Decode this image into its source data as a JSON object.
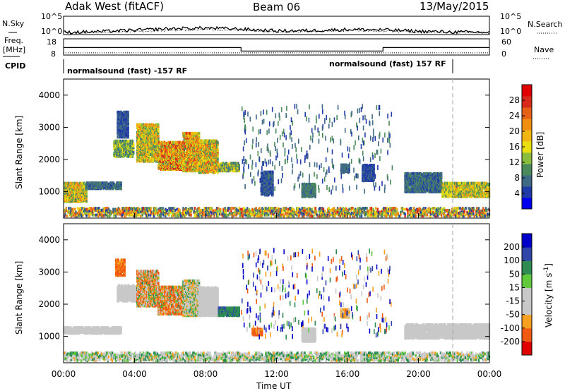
{
  "header": {
    "station": "Adak West (fitACF)",
    "beam": "Beam 06",
    "date": "13/May/2015"
  },
  "top_labels": {
    "nsky": "N.Sky",
    "nsearch": "N.Search",
    "freq_line1": "Freq.",
    "freq_line2": "[MHz]",
    "nave": "Nave",
    "cpid": "CPID"
  },
  "cpid_labels": [
    "normalsound (fast) -157 RF",
    "normalsound (fast) 157 RF"
  ],
  "colors": {
    "power": [
      "#0000ee",
      "#203aa8",
      "#3f6a86",
      "#4b8a5a",
      "#8abd3c",
      "#e9df10",
      "#f3b512",
      "#f08e12",
      "#e6601a",
      "#d82a1a",
      "#e00000"
    ],
    "velocity": [
      "#e00000",
      "#f15a12",
      "#f7a020",
      "#c8c8c8",
      "#c8c8c8",
      "#62c83c",
      "#2e8c52",
      "#2f46a8",
      "#0000c8"
    ],
    "ground_scatter": "#c8c8c8"
  },
  "chart_data": [
    {
      "type": "line",
      "name": "N.Sky / N.Search noise",
      "ylabels": [
        "10^5",
        "10^0"
      ],
      "right_ylabels": [
        "10^5",
        "10^0"
      ],
      "ylim_log10": [
        0,
        5
      ],
      "x": [
        0,
        2,
        4,
        6,
        8,
        10,
        12,
        14,
        16,
        18,
        20,
        22,
        24
      ],
      "series": [
        {
          "name": "N.Sky",
          "values": [
            0.6,
            0.8,
            1.2,
            1.6,
            1.8,
            1.5,
            1.0,
            1.1,
            1.4,
            1.3,
            0.9,
            0.7,
            0.6
          ]
        },
        {
          "name": "N.Search",
          "values": [
            0.5,
            0.6,
            0.9,
            1.1,
            1.4,
            1.2,
            0.8,
            0.9,
            1.1,
            1.0,
            0.7,
            0.6,
            0.5
          ]
        }
      ]
    },
    {
      "type": "line",
      "name": "Freq / Nave",
      "left_ticks": [
        8,
        18
      ],
      "right_ticks": [
        0,
        60
      ],
      "left_ylim": [
        8,
        18
      ],
      "right_ylim": [
        0,
        60
      ],
      "freq_steps": [
        {
          "from": 0,
          "to": 10,
          "value": 12.6
        },
        {
          "from": 10,
          "to": 18,
          "value": 10.5
        },
        {
          "from": 18,
          "to": 24,
          "value": 12.6
        }
      ],
      "nave_value": 8
    },
    {
      "type": "heatmap",
      "name": "power",
      "xlabel": "",
      "ylabel": "Slant Range [km]",
      "ylim": [
        180,
        4500
      ],
      "xlim": [
        0,
        24
      ],
      "yticks": [
        1000,
        2000,
        3000,
        4000
      ],
      "colorbar_label": "Power [dB]",
      "colorbar_ticks": [
        4,
        8,
        12,
        16,
        20,
        24,
        28
      ],
      "colorbar_range": [
        0,
        30
      ],
      "regions": [
        {
          "t0": 0.0,
          "t1": 1.3,
          "r0": 650,
          "r1": 1250,
          "v0": 8,
          "v1": 22
        },
        {
          "t0": 1.2,
          "t1": 3.2,
          "r0": 1050,
          "r1": 1250,
          "v0": 5,
          "v1": 9
        },
        {
          "t0": 2.8,
          "t1": 3.9,
          "r0": 2050,
          "r1": 2550,
          "v0": 6,
          "v1": 16
        },
        {
          "t0": 3.0,
          "t1": 3.6,
          "r0": 2650,
          "r1": 3450,
          "v0": 3,
          "v1": 7
        },
        {
          "t0": 4.1,
          "t1": 5.3,
          "r0": 1900,
          "r1": 3050,
          "v0": 8,
          "v1": 22
        },
        {
          "t0": 5.3,
          "t1": 6.7,
          "r0": 1650,
          "r1": 2500,
          "v0": 10,
          "v1": 28
        },
        {
          "t0": 6.7,
          "t1": 7.6,
          "r0": 1600,
          "r1": 2800,
          "v0": 10,
          "v1": 26
        },
        {
          "t0": 7.6,
          "t1": 8.7,
          "r0": 1550,
          "r1": 2550,
          "v0": 8,
          "v1": 24
        },
        {
          "t0": 8.7,
          "t1": 9.9,
          "r0": 1600,
          "r1": 1850,
          "v0": 6,
          "v1": 18
        },
        {
          "t0": 11.1,
          "t1": 11.8,
          "r0": 850,
          "r1": 1600,
          "v0": 3,
          "v1": 8
        },
        {
          "t0": 13.4,
          "t1": 14.2,
          "r0": 800,
          "r1": 1200,
          "v0": 6,
          "v1": 10
        },
        {
          "t0": 15.6,
          "t1": 16.1,
          "r0": 1550,
          "r1": 1800,
          "v0": 5,
          "v1": 9
        },
        {
          "t0": 16.8,
          "t1": 17.5,
          "r0": 1300,
          "r1": 1800,
          "v0": 3,
          "v1": 7
        },
        {
          "t0": 19.2,
          "t1": 21.3,
          "r0": 950,
          "r1": 1550,
          "v0": 4,
          "v1": 10
        },
        {
          "t0": 21.3,
          "t1": 24.0,
          "r0": 800,
          "r1": 1250,
          "v0": 8,
          "v1": 20
        },
        {
          "t0": 0.0,
          "t1": 24.0,
          "r0": 200,
          "r1": 450,
          "v0": 3,
          "v1": 26
        }
      ],
      "sparse": {
        "t0": 10.0,
        "t1": 18.5,
        "r0": 900,
        "r1": 3600,
        "v0": 3,
        "v1": 10
      }
    },
    {
      "type": "heatmap",
      "name": "velocity",
      "xlabel": "Time UT",
      "ylabel": "Slant Range [km]",
      "ylim": [
        180,
        4500
      ],
      "xlim": [
        0,
        24
      ],
      "xticks": [
        "00:00",
        "04:00",
        "08:00",
        "12:00",
        "16:00",
        "20:00",
        "00:00"
      ],
      "yticks": [
        1000,
        2000,
        3000,
        4000
      ],
      "colorbar_label": "Velocity [m s^-1]",
      "colorbar_ticks": [
        -200,
        -100,
        -50,
        -15,
        15,
        50,
        100,
        200
      ],
      "regions": [
        {
          "t0": 0.0,
          "t1": 3.2,
          "r0": 1050,
          "r1": 1250,
          "v0": -10,
          "v1": 10,
          "gs": true
        },
        {
          "t0": 2.9,
          "t1": 3.4,
          "r0": 2850,
          "r1": 3350,
          "v0": -180,
          "v1": -60
        },
        {
          "t0": 3.0,
          "t1": 4.0,
          "r0": 2050,
          "r1": 2550,
          "v0": -10,
          "v1": 10,
          "gs": true
        },
        {
          "t0": 4.1,
          "t1": 5.3,
          "r0": 1900,
          "r1": 3000,
          "v0": -160,
          "v1": 40
        },
        {
          "t0": 5.3,
          "t1": 6.7,
          "r0": 1650,
          "r1": 2500,
          "v0": -200,
          "v1": 30
        },
        {
          "t0": 6.7,
          "t1": 7.6,
          "r0": 1600,
          "r1": 2700,
          "v0": -80,
          "v1": 40
        },
        {
          "t0": 7.6,
          "t1": 8.7,
          "r0": 1600,
          "r1": 2500,
          "v0": -10,
          "v1": 10,
          "gs": true
        },
        {
          "t0": 8.7,
          "t1": 9.9,
          "r0": 1600,
          "r1": 1850,
          "v0": 20,
          "v1": 60
        },
        {
          "t0": 10.6,
          "t1": 11.2,
          "r0": 1000,
          "r1": 1200,
          "v0": -200,
          "v1": -80
        },
        {
          "t0": 13.4,
          "t1": 14.2,
          "r0": 800,
          "r1": 1200,
          "v0": -10,
          "v1": 10,
          "gs": true
        },
        {
          "t0": 15.6,
          "t1": 16.1,
          "r0": 1550,
          "r1": 1800,
          "v0": -90,
          "v1": -40
        },
        {
          "t0": 19.2,
          "t1": 24.0,
          "r0": 900,
          "r1": 1350,
          "v0": -10,
          "v1": 10,
          "gs": true
        },
        {
          "t0": 0.0,
          "t1": 24.0,
          "r0": 200,
          "r1": 450,
          "v0": -60,
          "v1": 40
        }
      ],
      "sparse": {
        "t0": 10.0,
        "t1": 18.5,
        "r0": 900,
        "r1": 3600,
        "v0": -150,
        "v1": 220
      }
    }
  ]
}
